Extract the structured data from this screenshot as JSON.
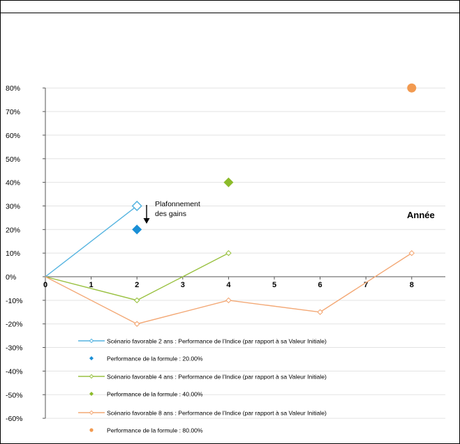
{
  "chart_data": {
    "type": "line",
    "xlabel": "Année",
    "ylabel": "",
    "xlim": [
      0,
      8.5
    ],
    "ylim": [
      -60,
      80
    ],
    "x_ticks": [
      "0",
      "1",
      "2",
      "3",
      "4",
      "5",
      "6",
      "7",
      "8"
    ],
    "y_ticks": [
      "80%",
      "70%",
      "60%",
      "50%",
      "40%",
      "30%",
      "20%",
      "10%",
      "0%",
      "-10%",
      "-20%",
      "-30%",
      "-40%",
      "-50%",
      "-60%"
    ],
    "grid": true,
    "legend_position": "bottom-inside",
    "annotation": {
      "lines": [
        "Plafonnement",
        "des gains"
      ],
      "x": 2.2,
      "y": 30
    },
    "series": [
      {
        "name": "Scénario favorable 2 ans : Performance de l'Indice (par rapport à sa Valeur Initiale)",
        "kind": "line",
        "color": "#55b4e0",
        "marker": "hollow-diamond",
        "x": [
          0,
          2
        ],
        "y": [
          0,
          30
        ]
      },
      {
        "name": "Performance de la formule : 20.00%",
        "kind": "point",
        "color": "#1a8fd6",
        "marker": "diamond",
        "x": [
          2
        ],
        "y": [
          20
        ]
      },
      {
        "name": "Scénario favorable 4 ans  : Performance de l'Indice (par rapport à sa Valeur Initiale)",
        "kind": "line",
        "color": "#99c140",
        "marker": "hollow-diamond-small",
        "x": [
          0,
          2,
          4
        ],
        "y": [
          0,
          -10,
          10
        ]
      },
      {
        "name": "Performance de la formule : 40.00%",
        "kind": "point",
        "color": "#8cbb2a",
        "marker": "diamond",
        "x": [
          4
        ],
        "y": [
          40
        ]
      },
      {
        "name": "Scénario favorable 8 ans : Performance de l'Indice (par rapport à sa Valeur Initiale)",
        "kind": "line",
        "color": "#f3a875",
        "marker": "hollow-diamond-small",
        "x": [
          0,
          2,
          4,
          6,
          8
        ],
        "y": [
          0,
          -20,
          -10,
          -15,
          10
        ]
      },
      {
        "name": "Performance de la formule : 80.00%",
        "kind": "point",
        "color": "#f29a50",
        "marker": "circle",
        "x": [
          8
        ],
        "y": [
          80
        ]
      }
    ]
  }
}
